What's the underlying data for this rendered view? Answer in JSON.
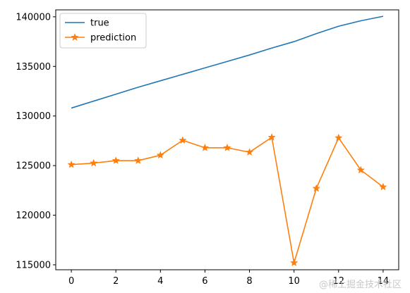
{
  "chart_data": {
    "type": "line",
    "title": "",
    "xlabel": "",
    "ylabel": "",
    "xlim": [
      -0.7,
      14.7
    ],
    "ylim": [
      114500,
      140700
    ],
    "grid": false,
    "legend_position": "top-left",
    "x": [
      0,
      1,
      2,
      3,
      4,
      5,
      6,
      7,
      8,
      9,
      10,
      11,
      12,
      13,
      14
    ],
    "x_ticks": [
      0,
      2,
      4,
      6,
      8,
      10,
      12,
      14
    ],
    "y_ticks": [
      115000,
      120000,
      125000,
      130000,
      135000,
      140000
    ],
    "series": [
      {
        "name": "true",
        "color": "#1f77b4",
        "marker": "none",
        "values": [
          130800,
          131500,
          132200,
          132900,
          133550,
          134200,
          134850,
          135500,
          136150,
          136850,
          137500,
          138300,
          139050,
          139600,
          140050
        ]
      },
      {
        "name": "prediction",
        "color": "#ff7f0e",
        "marker": "star",
        "values": [
          125100,
          125250,
          125500,
          125500,
          126050,
          127550,
          126800,
          126800,
          126350,
          127850,
          115200,
          122700,
          127800,
          124550,
          122850
        ]
      }
    ]
  },
  "watermark": "@稀土掘金技术社区"
}
